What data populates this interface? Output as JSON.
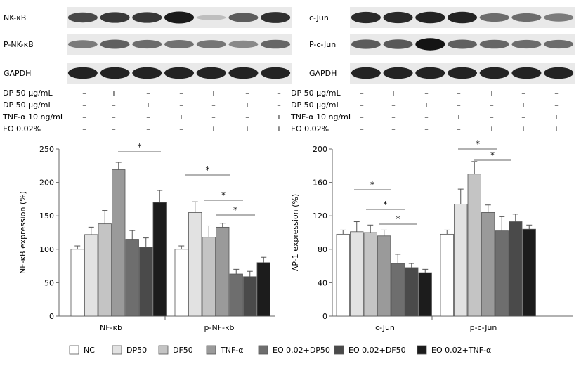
{
  "blot": {
    "left": {
      "rows": [
        "NK-κB",
        "P-NK-κB",
        "GAPDH"
      ],
      "intensity": [
        [
          0.7,
          0.78,
          0.78,
          0.92,
          0.12,
          0.6,
          0.82
        ],
        [
          0.45,
          0.58,
          0.52,
          0.5,
          0.48,
          0.38,
          0.55
        ],
        [
          0.88,
          0.88,
          0.88,
          0.88,
          0.88,
          0.88,
          0.88
        ]
      ]
    },
    "right": {
      "rows": [
        "c-Jun",
        "P-c-Jun",
        "GAPDH"
      ],
      "intensity": [
        [
          0.85,
          0.85,
          0.88,
          0.88,
          0.52,
          0.52,
          0.45
        ],
        [
          0.6,
          0.62,
          0.95,
          0.58,
          0.55,
          0.52,
          0.52
        ],
        [
          0.88,
          0.88,
          0.88,
          0.88,
          0.88,
          0.88,
          0.88
        ]
      ]
    }
  },
  "conditions": {
    "labels": [
      "DP 50 μg/mL",
      "DP 50 μg/mL",
      "TNF-α 10 ng/mL",
      "EO 0.02%"
    ],
    "matrix": [
      [
        "–",
        "+",
        "–",
        "–",
        "+",
        "–",
        "–"
      ],
      [
        "–",
        "–",
        "+",
        "–",
        "–",
        "+",
        "–"
      ],
      [
        "–",
        "–",
        "–",
        "+",
        "–",
        "–",
        "+"
      ],
      [
        "–",
        "–",
        "–",
        "–",
        "+",
        "+",
        "+"
      ]
    ]
  },
  "legend": [
    "NC",
    "DP50",
    "DF50",
    "TNF-α",
    "EO 0.02+DP50",
    "EO 0.02+DF50",
    "EO 0.02+TNF-α"
  ],
  "colors": [
    "#ffffff",
    "#e2e2e2",
    "#c4c4c4",
    "#9a9a9a",
    "#6e6e6e",
    "#4a4a4a",
    "#1c1c1c"
  ],
  "chart_data": [
    {
      "type": "bar",
      "ylabel": "NF-κB expression (%)",
      "ylim": [
        0,
        250
      ],
      "yticks": [
        0,
        50,
        100,
        150,
        200,
        250
      ],
      "categories": [
        "NF-κb",
        "p-NF-κb"
      ],
      "series": [
        {
          "name": "NC",
          "values": [
            100,
            100
          ],
          "errors": [
            5,
            5
          ]
        },
        {
          "name": "DP50",
          "values": [
            122,
            155
          ],
          "errors": [
            11,
            16
          ]
        },
        {
          "name": "DF50",
          "values": [
            138,
            118
          ],
          "errors": [
            20,
            17
          ]
        },
        {
          "name": "TNF-α",
          "values": [
            219,
            133
          ],
          "errors": [
            11,
            6
          ]
        },
        {
          "name": "EO 0.02+DP50",
          "values": [
            115,
            63
          ],
          "errors": [
            13,
            7
          ]
        },
        {
          "name": "EO 0.02+DF50",
          "values": [
            103,
            59
          ],
          "errors": [
            14,
            8
          ]
        },
        {
          "name": "EO 0.02+TNF-α",
          "values": [
            170,
            80
          ],
          "errors": [
            18,
            8
          ]
        }
      ],
      "annotations": [
        "*",
        "*",
        "*",
        "*"
      ]
    },
    {
      "type": "bar",
      "ylabel": "AP-1 expression (%)",
      "ylim": [
        0,
        200
      ],
      "yticks": [
        0,
        40,
        80,
        120,
        160,
        200
      ],
      "categories": [
        "c-Jun",
        "p-c-Jun"
      ],
      "series": [
        {
          "name": "NC",
          "values": [
            98,
            98
          ],
          "errors": [
            5,
            5
          ]
        },
        {
          "name": "DP50",
          "values": [
            101,
            134
          ],
          "errors": [
            12,
            18
          ]
        },
        {
          "name": "DF50",
          "values": [
            100,
            170
          ],
          "errors": [
            9,
            15
          ]
        },
        {
          "name": "TNF-α",
          "values": [
            96,
            124
          ],
          "errors": [
            7,
            9
          ]
        },
        {
          "name": "EO 0.02+DP50",
          "values": [
            63,
            102
          ],
          "errors": [
            11,
            17
          ]
        },
        {
          "name": "EO 0.02+DF50",
          "values": [
            58,
            113
          ],
          "errors": [
            5,
            9
          ]
        },
        {
          "name": "EO 0.02+TNF-α",
          "values": [
            52,
            104
          ],
          "errors": [
            4,
            5
          ]
        }
      ],
      "annotations": [
        "*",
        "*",
        "*",
        "*",
        "*"
      ]
    }
  ]
}
